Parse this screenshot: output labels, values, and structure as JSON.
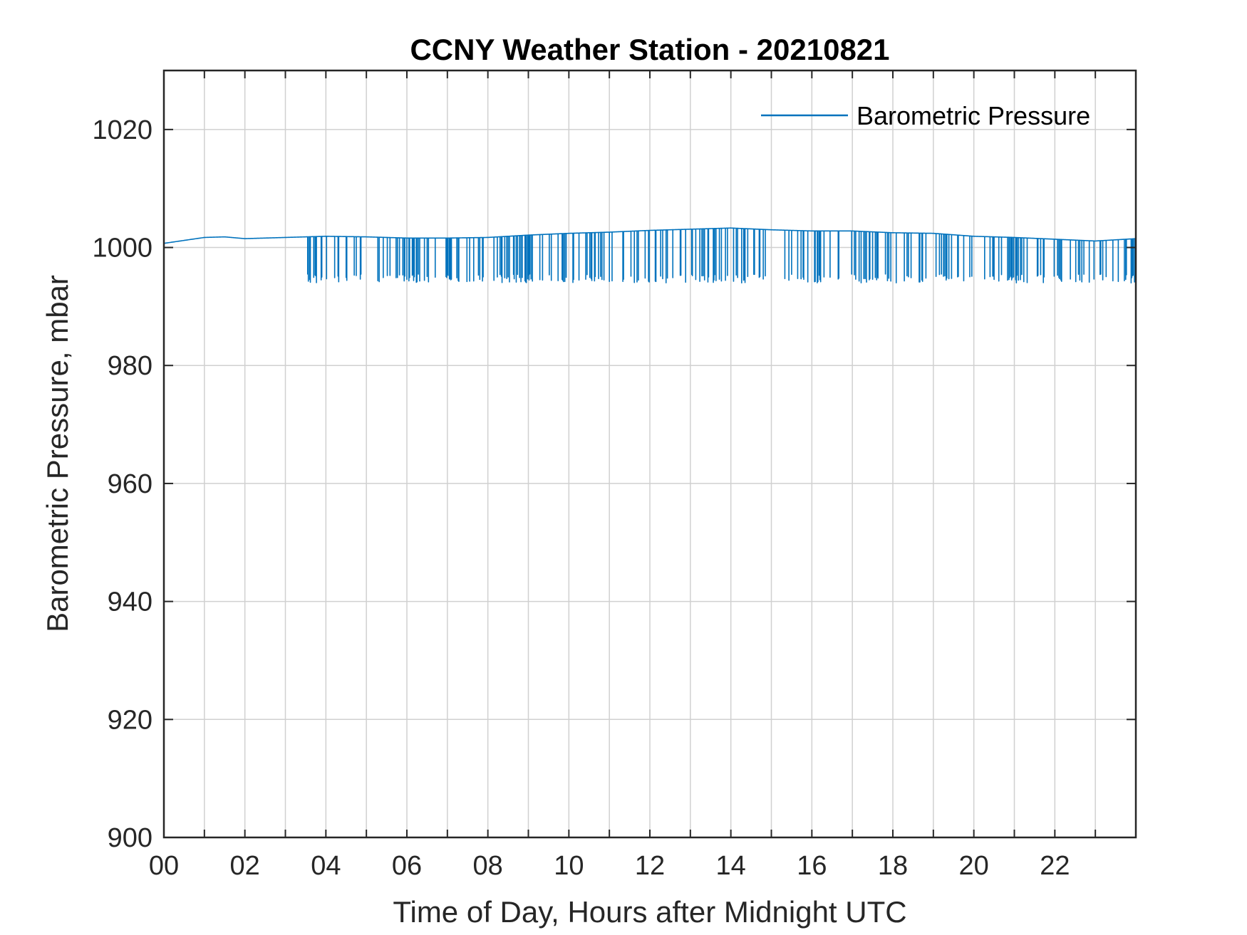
{
  "chart_data": {
    "type": "line",
    "title": "CCNY Weather Station - 20210821",
    "xlabel": "Time of Day, Hours after Midnight UTC",
    "ylabel": "Barometric Pressure, mbar",
    "xlim": [
      0,
      24
    ],
    "ylim": [
      900,
      1030
    ],
    "xticks": [
      0,
      2,
      4,
      6,
      8,
      10,
      12,
      14,
      16,
      18,
      20,
      22
    ],
    "xtick_labels": [
      "00",
      "02",
      "04",
      "06",
      "08",
      "10",
      "12",
      "14",
      "16",
      "18",
      "20",
      "22"
    ],
    "yticks": [
      900,
      920,
      940,
      960,
      980,
      1000,
      1020
    ],
    "ytick_labels": [
      "900",
      "920",
      "940",
      "960",
      "980",
      "1000",
      "1020"
    ],
    "grid": true,
    "legend_position": "top-right",
    "color": "#0072BD",
    "series": [
      {
        "name": "Barometric Pressure",
        "baseline": {
          "x": [
            0,
            0.5,
            1,
            1.5,
            2,
            3,
            4,
            5,
            6,
            7,
            8,
            9,
            10,
            11,
            12,
            13,
            14,
            15,
            16,
            17,
            18,
            19,
            20,
            21,
            22,
            23,
            24
          ],
          "y": [
            1000.7,
            1001.2,
            1001.7,
            1001.8,
            1001.5,
            1001.7,
            1001.9,
            1001.8,
            1001.6,
            1001.6,
            1001.7,
            1002.1,
            1002.4,
            1002.6,
            1002.9,
            1003.1,
            1003.3,
            1003.0,
            1002.8,
            1002.8,
            1002.5,
            1002.4,
            1001.9,
            1001.7,
            1001.4,
            1001.1,
            1001.5
          ]
        },
        "dropouts": {
          "start": 3.4,
          "end": 24,
          "depth_min": 994,
          "depth_max": 995.5
        }
      }
    ]
  }
}
